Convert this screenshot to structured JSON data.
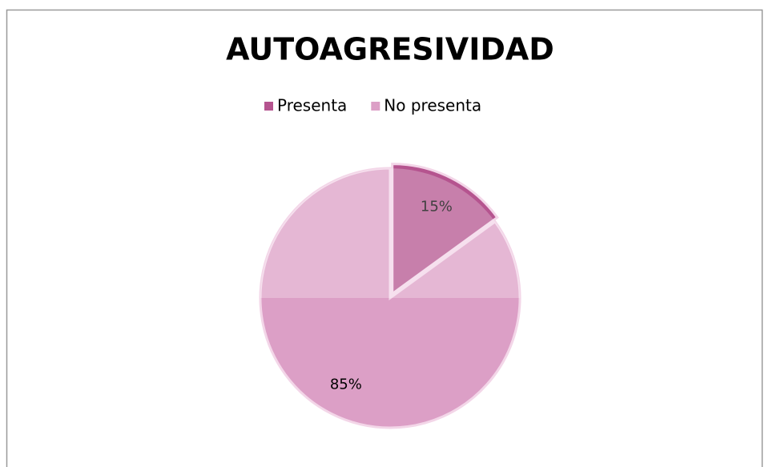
{
  "chart_data": {
    "type": "pie",
    "title": "AUTOAGRESIVIDAD",
    "categories": [
      "Presenta",
      "No presenta"
    ],
    "values": [
      15,
      85
    ],
    "value_labels": [
      "15%",
      "85%"
    ],
    "colors": [
      "#b5548f",
      "#dc9fc6"
    ],
    "legend": "top"
  }
}
